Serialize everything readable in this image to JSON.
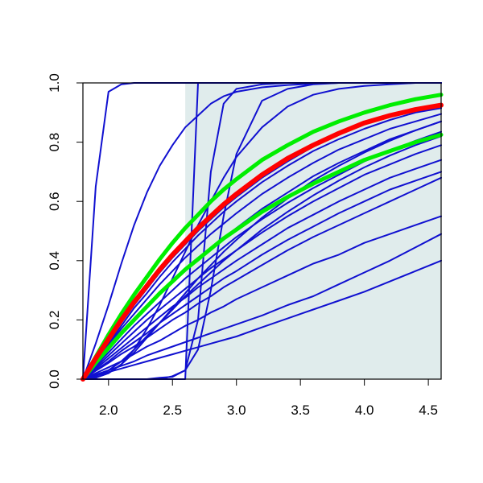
{
  "chart_data": {
    "type": "line",
    "title": "",
    "xlabel": "",
    "ylabel": "",
    "xlim": [
      1.8,
      4.6
    ],
    "ylim": [
      0.0,
      1.0
    ],
    "x_ticks": [
      "2.0",
      "2.5",
      "3.0",
      "3.5",
      "4.0",
      "4.5"
    ],
    "y_ticks": [
      "0.0",
      "0.2",
      "0.4",
      "0.6",
      "0.8",
      "1.0"
    ],
    "grid": false,
    "legend": "none",
    "shaded_region": {
      "x_from": 2.6,
      "x_to": 4.6,
      "color": "#e0ecec"
    },
    "colors": {
      "curves": "#1010d0",
      "median": "#ff0000",
      "band": "#00ee00",
      "axis": "#000000"
    },
    "x_samples": [
      1.8,
      1.9,
      2.0,
      2.1,
      2.2,
      2.3,
      2.4,
      2.5,
      2.6,
      2.7,
      2.8,
      2.9,
      3.0,
      3.2,
      3.4,
      3.6,
      3.8,
      4.0,
      4.2,
      4.4,
      4.6
    ],
    "series": [
      {
        "role": "median",
        "values": [
          0.0,
          0.07,
          0.135,
          0.2,
          0.26,
          0.315,
          0.37,
          0.42,
          0.465,
          0.51,
          0.55,
          0.59,
          0.625,
          0.69,
          0.745,
          0.79,
          0.83,
          0.865,
          0.89,
          0.91,
          0.925
        ]
      },
      {
        "role": "upper-band",
        "values": [
          0.0,
          0.075,
          0.15,
          0.22,
          0.285,
          0.345,
          0.405,
          0.46,
          0.51,
          0.555,
          0.6,
          0.64,
          0.675,
          0.74,
          0.79,
          0.835,
          0.87,
          0.9,
          0.925,
          0.945,
          0.96
        ]
      },
      {
        "role": "lower-band",
        "values": [
          0.0,
          0.055,
          0.105,
          0.155,
          0.2,
          0.245,
          0.29,
          0.33,
          0.37,
          0.405,
          0.44,
          0.475,
          0.505,
          0.565,
          0.615,
          0.66,
          0.7,
          0.74,
          0.77,
          0.8,
          0.825
        ]
      },
      {
        "role": "curve",
        "values": [
          0.0,
          0.65,
          0.97,
          0.995,
          1.0,
          1.0,
          1.0,
          1.0,
          1.0,
          1.0,
          1.0,
          1.0,
          1.0,
          1.0,
          1.0,
          1.0,
          1.0,
          1.0,
          1.0,
          1.0,
          1.0
        ]
      },
      {
        "role": "curve",
        "values": [
          0.0,
          0.12,
          0.25,
          0.39,
          0.52,
          0.63,
          0.72,
          0.79,
          0.85,
          0.89,
          0.93,
          0.955,
          0.97,
          0.985,
          0.993,
          0.997,
          1.0,
          1.0,
          1.0,
          1.0,
          1.0
        ]
      },
      {
        "role": "curve",
        "values": [
          0.0,
          0.0,
          0.0,
          0.0,
          0.0,
          0.0,
          0.0,
          0.01,
          0.03,
          0.2,
          0.7,
          0.93,
          0.98,
          0.995,
          1.0,
          1.0,
          1.0,
          1.0,
          1.0,
          1.0,
          1.0
        ]
      },
      {
        "role": "curve",
        "values": [
          0.0,
          0.0,
          0.0,
          0.0,
          0.0,
          0.0,
          0.005,
          0.008,
          0.03,
          0.1,
          0.3,
          0.55,
          0.76,
          0.94,
          0.98,
          0.995,
          1.0,
          1.0,
          1.0,
          1.0,
          1.0
        ]
      },
      {
        "role": "curve",
        "values": [
          0.0,
          0.0,
          0.0,
          0.0,
          0.0,
          0.0,
          0.0,
          0.0,
          0.0,
          1.0,
          1.0,
          1.0,
          1.0,
          1.0,
          1.0,
          1.0,
          1.0,
          1.0,
          1.0,
          1.0,
          1.0
        ]
      },
      {
        "role": "curve",
        "values": [
          0.0,
          0.005,
          0.02,
          0.05,
          0.1,
          0.17,
          0.25,
          0.34,
          0.43,
          0.52,
          0.6,
          0.68,
          0.75,
          0.85,
          0.92,
          0.96,
          0.98,
          0.99,
          0.995,
          1.0,
          1.0
        ]
      },
      {
        "role": "curve",
        "values": [
          0.0,
          0.06,
          0.12,
          0.18,
          0.24,
          0.29,
          0.345,
          0.395,
          0.44,
          0.485,
          0.525,
          0.565,
          0.6,
          0.665,
          0.72,
          0.77,
          0.81,
          0.845,
          0.875,
          0.9,
          0.915
        ]
      },
      {
        "role": "curve",
        "values": [
          0.0,
          0.05,
          0.1,
          0.15,
          0.195,
          0.24,
          0.285,
          0.325,
          0.365,
          0.405,
          0.44,
          0.475,
          0.51,
          0.575,
          0.63,
          0.685,
          0.73,
          0.77,
          0.81,
          0.84,
          0.87
        ]
      },
      {
        "role": "curve",
        "values": [
          0.0,
          0.045,
          0.09,
          0.135,
          0.18,
          0.22,
          0.26,
          0.3,
          0.34,
          0.375,
          0.41,
          0.445,
          0.48,
          0.54,
          0.595,
          0.645,
          0.69,
          0.735,
          0.77,
          0.805,
          0.835
        ]
      },
      {
        "role": "curve",
        "values": [
          0.0,
          0.04,
          0.08,
          0.12,
          0.16,
          0.2,
          0.235,
          0.27,
          0.305,
          0.34,
          0.375,
          0.405,
          0.435,
          0.495,
          0.55,
          0.6,
          0.645,
          0.69,
          0.725,
          0.76,
          0.79
        ]
      },
      {
        "role": "curve",
        "values": [
          0.0,
          0.035,
          0.07,
          0.105,
          0.14,
          0.175,
          0.21,
          0.245,
          0.275,
          0.31,
          0.34,
          0.37,
          0.4,
          0.455,
          0.51,
          0.555,
          0.6,
          0.64,
          0.68,
          0.71,
          0.74
        ]
      },
      {
        "role": "curve",
        "values": [
          0.0,
          0.03,
          0.06,
          0.095,
          0.125,
          0.155,
          0.19,
          0.22,
          0.25,
          0.28,
          0.31,
          0.34,
          0.365,
          0.42,
          0.47,
          0.515,
          0.56,
          0.6,
          0.64,
          0.67,
          0.7
        ]
      },
      {
        "role": "curve",
        "values": [
          0.0,
          0.028,
          0.055,
          0.085,
          0.11,
          0.14,
          0.17,
          0.2,
          0.225,
          0.255,
          0.28,
          0.31,
          0.335,
          0.385,
          0.435,
          0.48,
          0.52,
          0.56,
          0.6,
          0.64,
          0.68
        ]
      },
      {
        "role": "curve",
        "values": [
          0.0,
          0.02,
          0.04,
          0.06,
          0.085,
          0.11,
          0.13,
          0.155,
          0.18,
          0.2,
          0.225,
          0.245,
          0.27,
          0.31,
          0.35,
          0.39,
          0.42,
          0.46,
          0.49,
          0.52,
          0.55
        ]
      },
      {
        "role": "curve",
        "values": [
          0.0,
          0.015,
          0.03,
          0.045,
          0.06,
          0.08,
          0.095,
          0.11,
          0.125,
          0.14,
          0.155,
          0.17,
          0.185,
          0.215,
          0.25,
          0.28,
          0.32,
          0.36,
          0.4,
          0.445,
          0.49
        ]
      },
      {
        "role": "curve",
        "values": [
          0.0,
          0.012,
          0.024,
          0.036,
          0.048,
          0.06,
          0.072,
          0.084,
          0.096,
          0.108,
          0.12,
          0.132,
          0.144,
          0.175,
          0.205,
          0.235,
          0.265,
          0.295,
          0.33,
          0.365,
          0.4
        ]
      },
      {
        "role": "curve",
        "values": [
          0.0,
          0.005,
          0.02,
          0.05,
          0.09,
          0.14,
          0.19,
          0.24,
          0.29,
          0.34,
          0.385,
          0.43,
          0.47,
          0.545,
          0.61,
          0.67,
          0.72,
          0.765,
          0.805,
          0.84,
          0.87
        ]
      },
      {
        "role": "curve",
        "values": [
          0.0,
          0.01,
          0.03,
          0.06,
          0.1,
          0.145,
          0.19,
          0.235,
          0.28,
          0.32,
          0.36,
          0.4,
          0.435,
          0.505,
          0.565,
          0.62,
          0.67,
          0.715,
          0.755,
          0.79,
          0.82
        ]
      },
      {
        "role": "curve",
        "values": [
          0.0,
          0.065,
          0.13,
          0.19,
          0.25,
          0.305,
          0.36,
          0.41,
          0.455,
          0.5,
          0.54,
          0.58,
          0.615,
          0.68,
          0.735,
          0.785,
          0.825,
          0.86,
          0.885,
          0.905,
          0.92
        ]
      },
      {
        "role": "curve",
        "values": [
          0.0,
          0.058,
          0.115,
          0.17,
          0.22,
          0.27,
          0.32,
          0.365,
          0.41,
          0.45,
          0.49,
          0.525,
          0.56,
          0.625,
          0.68,
          0.73,
          0.775,
          0.81,
          0.845,
          0.87,
          0.895
        ]
      }
    ]
  }
}
